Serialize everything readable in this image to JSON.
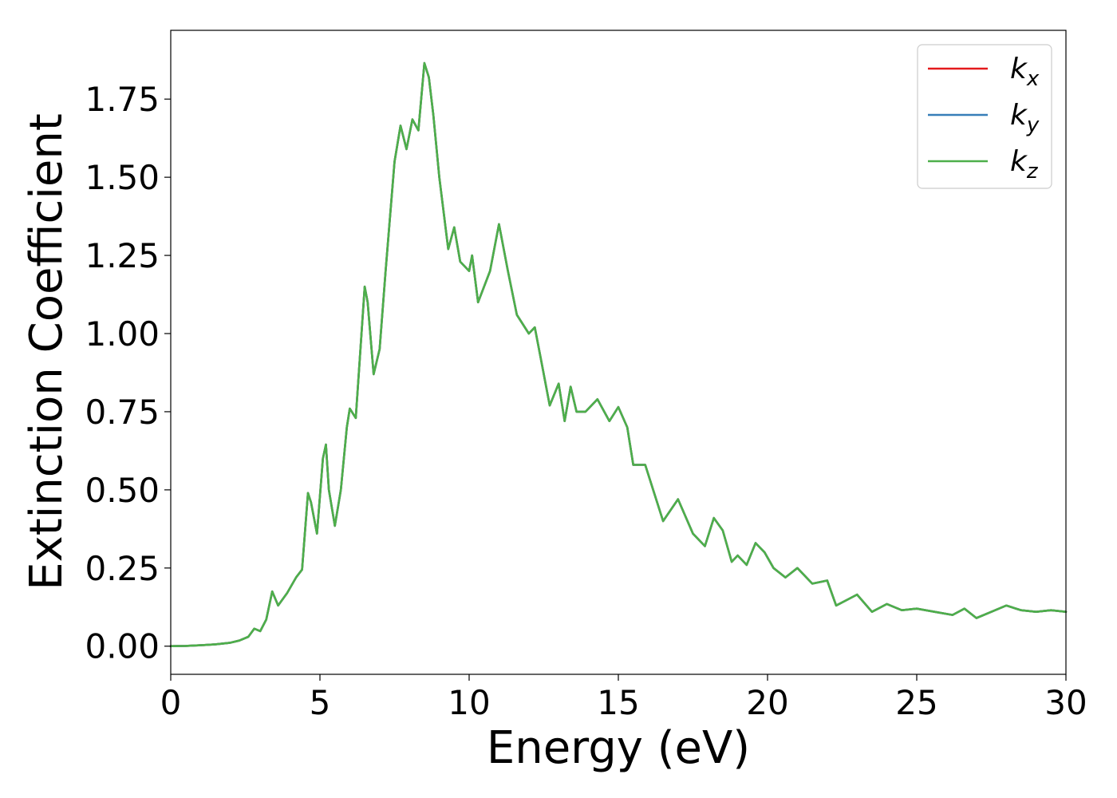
{
  "chart_data": {
    "type": "line",
    "title": "",
    "xlabel": "Energy (eV)",
    "ylabel": "Extinction Coefficient",
    "xlim": [
      0,
      30
    ],
    "ylim": [
      -0.09,
      1.97
    ],
    "xticks": [
      0,
      5,
      10,
      15,
      20,
      25,
      30
    ],
    "xtick_labels": [
      "0",
      "5",
      "10",
      "15",
      "20",
      "25",
      "30"
    ],
    "yticks": [
      0.0,
      0.25,
      0.5,
      0.75,
      1.0,
      1.25,
      1.5,
      1.75
    ],
    "ytick_labels": [
      "0.00",
      "0.25",
      "0.50",
      "0.75",
      "1.00",
      "1.25",
      "1.50",
      "1.75"
    ],
    "grid": false,
    "legend_position": "top-right",
    "series": [
      {
        "name": "k_x",
        "legend_main": "k",
        "legend_sub": "x",
        "color": "#e41a1c",
        "points": [
          [
            0,
            0.0
          ],
          [
            0.5,
            0.001
          ],
          [
            1.0,
            0.003
          ],
          [
            1.5,
            0.006
          ],
          [
            2.0,
            0.011
          ],
          [
            2.3,
            0.018
          ],
          [
            2.6,
            0.03
          ],
          [
            2.8,
            0.056
          ],
          [
            3.0,
            0.048
          ],
          [
            3.2,
            0.085
          ],
          [
            3.4,
            0.175
          ],
          [
            3.6,
            0.13
          ],
          [
            3.9,
            0.17
          ],
          [
            4.2,
            0.22
          ],
          [
            4.4,
            0.245
          ],
          [
            4.6,
            0.49
          ],
          [
            4.7,
            0.46
          ],
          [
            4.9,
            0.36
          ],
          [
            5.1,
            0.6
          ],
          [
            5.2,
            0.645
          ],
          [
            5.3,
            0.5
          ],
          [
            5.5,
            0.385
          ],
          [
            5.7,
            0.5
          ],
          [
            5.9,
            0.7
          ],
          [
            6.0,
            0.76
          ],
          [
            6.2,
            0.73
          ],
          [
            6.5,
            1.15
          ],
          [
            6.6,
            1.1
          ],
          [
            6.8,
            0.87
          ],
          [
            7.0,
            0.95
          ],
          [
            7.2,
            1.2
          ],
          [
            7.5,
            1.55
          ],
          [
            7.7,
            1.665
          ],
          [
            7.9,
            1.59
          ],
          [
            8.1,
            1.685
          ],
          [
            8.3,
            1.65
          ],
          [
            8.5,
            1.865
          ],
          [
            8.65,
            1.82
          ],
          [
            8.8,
            1.7
          ],
          [
            9.0,
            1.5
          ],
          [
            9.3,
            1.27
          ],
          [
            9.5,
            1.34
          ],
          [
            9.7,
            1.23
          ],
          [
            10.0,
            1.2
          ],
          [
            10.1,
            1.25
          ],
          [
            10.3,
            1.1
          ],
          [
            10.7,
            1.2
          ],
          [
            11.0,
            1.35
          ],
          [
            11.3,
            1.2
          ],
          [
            11.6,
            1.06
          ],
          [
            12.0,
            1.0
          ],
          [
            12.2,
            1.02
          ],
          [
            12.4,
            0.92
          ],
          [
            12.7,
            0.77
          ],
          [
            13.0,
            0.84
          ],
          [
            13.2,
            0.72
          ],
          [
            13.4,
            0.83
          ],
          [
            13.6,
            0.75
          ],
          [
            13.9,
            0.75
          ],
          [
            14.3,
            0.79
          ],
          [
            14.7,
            0.72
          ],
          [
            15.0,
            0.765
          ],
          [
            15.3,
            0.7
          ],
          [
            15.5,
            0.58
          ],
          [
            15.9,
            0.58
          ],
          [
            16.2,
            0.49
          ],
          [
            16.5,
            0.4
          ],
          [
            17.0,
            0.47
          ],
          [
            17.5,
            0.36
          ],
          [
            17.9,
            0.32
          ],
          [
            18.2,
            0.41
          ],
          [
            18.5,
            0.37
          ],
          [
            18.8,
            0.27
          ],
          [
            19.0,
            0.29
          ],
          [
            19.3,
            0.26
          ],
          [
            19.6,
            0.33
          ],
          [
            19.9,
            0.3
          ],
          [
            20.2,
            0.25
          ],
          [
            20.6,
            0.22
          ],
          [
            21.0,
            0.25
          ],
          [
            21.5,
            0.2
          ],
          [
            22.0,
            0.21
          ],
          [
            22.3,
            0.13
          ],
          [
            22.7,
            0.15
          ],
          [
            23.0,
            0.165
          ],
          [
            23.5,
            0.11
          ],
          [
            24.0,
            0.135
          ],
          [
            24.5,
            0.115
          ],
          [
            25.0,
            0.12
          ],
          [
            25.6,
            0.11
          ],
          [
            26.2,
            0.1
          ],
          [
            26.6,
            0.12
          ],
          [
            27.0,
            0.09
          ],
          [
            27.5,
            0.11
          ],
          [
            28.0,
            0.13
          ],
          [
            28.5,
            0.115
          ],
          [
            29.0,
            0.11
          ],
          [
            29.5,
            0.115
          ],
          [
            30.0,
            0.11
          ]
        ]
      },
      {
        "name": "k_y",
        "legend_main": "k",
        "legend_sub": "y",
        "color": "#377eb8",
        "points": [
          [
            0,
            0.0
          ],
          [
            0.5,
            0.001
          ],
          [
            1.0,
            0.003
          ],
          [
            1.5,
            0.006
          ],
          [
            2.0,
            0.011
          ],
          [
            2.3,
            0.018
          ],
          [
            2.6,
            0.03
          ],
          [
            2.8,
            0.056
          ],
          [
            3.0,
            0.048
          ],
          [
            3.2,
            0.085
          ],
          [
            3.4,
            0.175
          ],
          [
            3.6,
            0.13
          ],
          [
            3.9,
            0.17
          ],
          [
            4.2,
            0.22
          ],
          [
            4.4,
            0.245
          ],
          [
            4.6,
            0.49
          ],
          [
            4.7,
            0.46
          ],
          [
            4.9,
            0.36
          ],
          [
            5.1,
            0.6
          ],
          [
            5.2,
            0.645
          ],
          [
            5.3,
            0.5
          ],
          [
            5.5,
            0.385
          ],
          [
            5.7,
            0.5
          ],
          [
            5.9,
            0.7
          ],
          [
            6.0,
            0.76
          ],
          [
            6.2,
            0.73
          ],
          [
            6.5,
            1.15
          ],
          [
            6.6,
            1.1
          ],
          [
            6.8,
            0.87
          ],
          [
            7.0,
            0.95
          ],
          [
            7.2,
            1.2
          ],
          [
            7.5,
            1.55
          ],
          [
            7.7,
            1.665
          ],
          [
            7.9,
            1.59
          ],
          [
            8.1,
            1.685
          ],
          [
            8.3,
            1.65
          ],
          [
            8.5,
            1.865
          ],
          [
            8.65,
            1.82
          ],
          [
            8.8,
            1.7
          ],
          [
            9.0,
            1.5
          ],
          [
            9.3,
            1.27
          ],
          [
            9.5,
            1.34
          ],
          [
            9.7,
            1.23
          ],
          [
            10.0,
            1.2
          ],
          [
            10.1,
            1.25
          ],
          [
            10.3,
            1.1
          ],
          [
            10.7,
            1.2
          ],
          [
            11.0,
            1.35
          ],
          [
            11.3,
            1.2
          ],
          [
            11.6,
            1.06
          ],
          [
            12.0,
            1.0
          ],
          [
            12.2,
            1.02
          ],
          [
            12.4,
            0.92
          ],
          [
            12.7,
            0.77
          ],
          [
            13.0,
            0.84
          ],
          [
            13.2,
            0.72
          ],
          [
            13.4,
            0.83
          ],
          [
            13.6,
            0.75
          ],
          [
            13.9,
            0.75
          ],
          [
            14.3,
            0.79
          ],
          [
            14.7,
            0.72
          ],
          [
            15.0,
            0.765
          ],
          [
            15.3,
            0.7
          ],
          [
            15.5,
            0.58
          ],
          [
            15.9,
            0.58
          ],
          [
            16.2,
            0.49
          ],
          [
            16.5,
            0.4
          ],
          [
            17.0,
            0.47
          ],
          [
            17.5,
            0.36
          ],
          [
            17.9,
            0.32
          ],
          [
            18.2,
            0.41
          ],
          [
            18.5,
            0.37
          ],
          [
            18.8,
            0.27
          ],
          [
            19.0,
            0.29
          ],
          [
            19.3,
            0.26
          ],
          [
            19.6,
            0.33
          ],
          [
            19.9,
            0.3
          ],
          [
            20.2,
            0.25
          ],
          [
            20.6,
            0.22
          ],
          [
            21.0,
            0.25
          ],
          [
            21.5,
            0.2
          ],
          [
            22.0,
            0.21
          ],
          [
            22.3,
            0.13
          ],
          [
            22.7,
            0.15
          ],
          [
            23.0,
            0.165
          ],
          [
            23.5,
            0.11
          ],
          [
            24.0,
            0.135
          ],
          [
            24.5,
            0.115
          ],
          [
            25.0,
            0.12
          ],
          [
            25.6,
            0.11
          ],
          [
            26.2,
            0.1
          ],
          [
            26.6,
            0.12
          ],
          [
            27.0,
            0.09
          ],
          [
            27.5,
            0.11
          ],
          [
            28.0,
            0.13
          ],
          [
            28.5,
            0.115
          ],
          [
            29.0,
            0.11
          ],
          [
            29.5,
            0.115
          ],
          [
            30.0,
            0.11
          ]
        ]
      },
      {
        "name": "k_z",
        "legend_main": "k",
        "legend_sub": "z",
        "color": "#4daf4a",
        "points": [
          [
            0,
            0.0
          ],
          [
            0.5,
            0.001
          ],
          [
            1.0,
            0.003
          ],
          [
            1.5,
            0.006
          ],
          [
            2.0,
            0.011
          ],
          [
            2.3,
            0.018
          ],
          [
            2.6,
            0.03
          ],
          [
            2.8,
            0.056
          ],
          [
            3.0,
            0.048
          ],
          [
            3.2,
            0.085
          ],
          [
            3.4,
            0.175
          ],
          [
            3.6,
            0.13
          ],
          [
            3.9,
            0.17
          ],
          [
            4.2,
            0.22
          ],
          [
            4.4,
            0.245
          ],
          [
            4.6,
            0.49
          ],
          [
            4.7,
            0.46
          ],
          [
            4.9,
            0.36
          ],
          [
            5.1,
            0.6
          ],
          [
            5.2,
            0.645
          ],
          [
            5.3,
            0.5
          ],
          [
            5.5,
            0.385
          ],
          [
            5.7,
            0.5
          ],
          [
            5.9,
            0.7
          ],
          [
            6.0,
            0.76
          ],
          [
            6.2,
            0.73
          ],
          [
            6.5,
            1.15
          ],
          [
            6.6,
            1.1
          ],
          [
            6.8,
            0.87
          ],
          [
            7.0,
            0.95
          ],
          [
            7.2,
            1.2
          ],
          [
            7.5,
            1.55
          ],
          [
            7.7,
            1.665
          ],
          [
            7.9,
            1.59
          ],
          [
            8.1,
            1.685
          ],
          [
            8.3,
            1.65
          ],
          [
            8.5,
            1.865
          ],
          [
            8.65,
            1.82
          ],
          [
            8.8,
            1.7
          ],
          [
            9.0,
            1.5
          ],
          [
            9.3,
            1.27
          ],
          [
            9.5,
            1.34
          ],
          [
            9.7,
            1.23
          ],
          [
            10.0,
            1.2
          ],
          [
            10.1,
            1.25
          ],
          [
            10.3,
            1.1
          ],
          [
            10.7,
            1.2
          ],
          [
            11.0,
            1.35
          ],
          [
            11.3,
            1.2
          ],
          [
            11.6,
            1.06
          ],
          [
            12.0,
            1.0
          ],
          [
            12.2,
            1.02
          ],
          [
            12.4,
            0.92
          ],
          [
            12.7,
            0.77
          ],
          [
            13.0,
            0.84
          ],
          [
            13.2,
            0.72
          ],
          [
            13.4,
            0.83
          ],
          [
            13.6,
            0.75
          ],
          [
            13.9,
            0.75
          ],
          [
            14.3,
            0.79
          ],
          [
            14.7,
            0.72
          ],
          [
            15.0,
            0.765
          ],
          [
            15.3,
            0.7
          ],
          [
            15.5,
            0.58
          ],
          [
            15.9,
            0.58
          ],
          [
            16.2,
            0.49
          ],
          [
            16.5,
            0.4
          ],
          [
            17.0,
            0.47
          ],
          [
            17.5,
            0.36
          ],
          [
            17.9,
            0.32
          ],
          [
            18.2,
            0.41
          ],
          [
            18.5,
            0.37
          ],
          [
            18.8,
            0.27
          ],
          [
            19.0,
            0.29
          ],
          [
            19.3,
            0.26
          ],
          [
            19.6,
            0.33
          ],
          [
            19.9,
            0.3
          ],
          [
            20.2,
            0.25
          ],
          [
            20.6,
            0.22
          ],
          [
            21.0,
            0.25
          ],
          [
            21.5,
            0.2
          ],
          [
            22.0,
            0.21
          ],
          [
            22.3,
            0.13
          ],
          [
            22.7,
            0.15
          ],
          [
            23.0,
            0.165
          ],
          [
            23.5,
            0.11
          ],
          [
            24.0,
            0.135
          ],
          [
            24.5,
            0.115
          ],
          [
            25.0,
            0.12
          ],
          [
            25.6,
            0.11
          ],
          [
            26.2,
            0.1
          ],
          [
            26.6,
            0.12
          ],
          [
            27.0,
            0.09
          ],
          [
            27.5,
            0.11
          ],
          [
            28.0,
            0.13
          ],
          [
            28.5,
            0.115
          ],
          [
            29.0,
            0.11
          ],
          [
            29.5,
            0.115
          ],
          [
            30.0,
            0.11
          ]
        ]
      }
    ]
  }
}
